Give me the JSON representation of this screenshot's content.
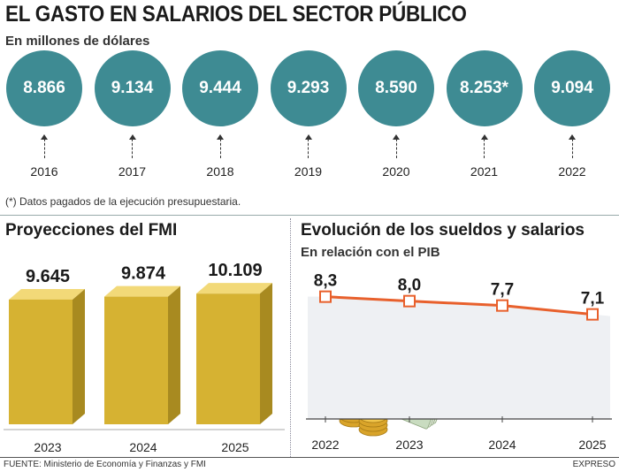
{
  "title": "EL GASTO EN SALARIOS DEL SECTOR PÚBLICO",
  "subtitle": "En millones de dólares",
  "note": "(*) Datos pagados de la ejecución presupuestaria.",
  "colors": {
    "circle": "#3e8b93",
    "bar_front": "#d6b232",
    "bar_top": "#f2d978",
    "bar_side": "#a88a20",
    "line": "#e8602c",
    "area": "#eef0f3"
  },
  "footer_source": "FUENTE: Ministerio de Economía y Finanzas y FMI",
  "footer_brand": "EXPRESO",
  "chart_data": [
    {
      "type": "bar",
      "title": "EL GASTO EN SALARIOS DEL SECTOR PÚBLICO",
      "subtitle": "En millones de dólares",
      "categories": [
        "2016",
        "2017",
        "2018",
        "2019",
        "2020",
        "2021",
        "2022"
      ],
      "labels": [
        "8.866",
        "9.134",
        "9.444",
        "9.293",
        "8.590",
        "8.253*",
        "9.094"
      ],
      "values": [
        8866,
        9134,
        9444,
        9293,
        8590,
        8253,
        9094
      ]
    },
    {
      "type": "bar",
      "title": "Proyecciones del FMI",
      "categories": [
        "2023",
        "2024",
        "2025"
      ],
      "labels": [
        "9.645",
        "9.874",
        "10.109"
      ],
      "values": [
        9645,
        9874,
        10109
      ]
    },
    {
      "type": "line",
      "title": "Evolución de los sueldos y salarios",
      "subtitle": "En relación con el PIB",
      "x": [
        "2022",
        "2023",
        "2024",
        "2025"
      ],
      "labels": [
        "8,3",
        "8,0",
        "7,7",
        "7,1"
      ],
      "values": [
        8.3,
        8.0,
        7.7,
        7.1
      ],
      "ylim": [
        0,
        9
      ]
    }
  ]
}
